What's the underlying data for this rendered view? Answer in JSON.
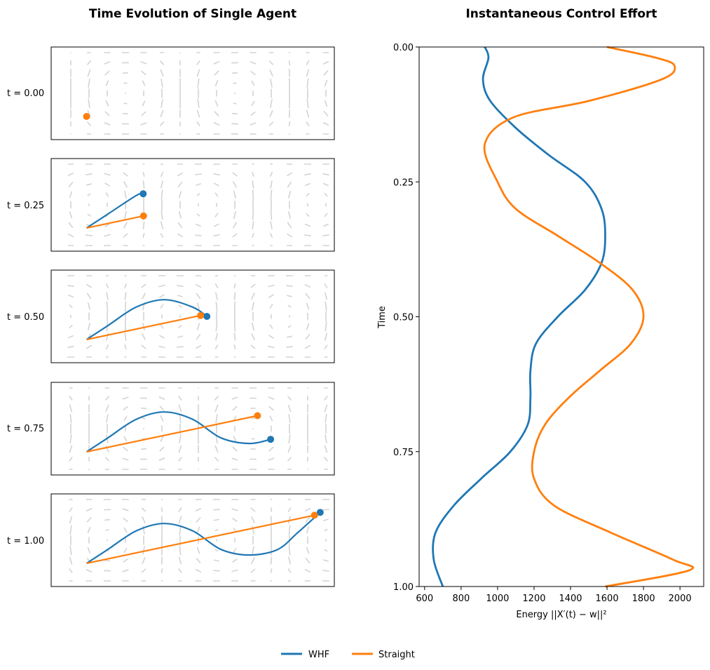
{
  "colors": {
    "whf": "#1f77b4",
    "straight": "#ff7f0e",
    "field": "#d3d3d3"
  },
  "chart_data": [
    {
      "type": "line",
      "title": "Time Evolution of Single Agent",
      "panels": [
        {
          "label": "t = 0.00"
        },
        {
          "label": "t = 0.25"
        },
        {
          "label": "t = 0.50"
        },
        {
          "label": "t = 0.75"
        },
        {
          "label": "t = 1.00"
        }
      ],
      "series": [
        {
          "name": "WHF",
          "x": [
            0.125,
            0.2,
            0.3,
            0.4,
            0.5,
            0.6,
            0.7,
            0.8,
            0.87,
            0.95
          ],
          "y": [
            0.25,
            0.4,
            0.6,
            0.68,
            0.6,
            0.4,
            0.34,
            0.4,
            0.58,
            0.8
          ]
        },
        {
          "name": "Straight",
          "x": [
            0.125,
            0.93
          ],
          "y": [
            0.25,
            0.77
          ]
        }
      ],
      "background": "quiver vector field",
      "grid": false
    },
    {
      "type": "line",
      "title": "Instantaneous Control Effort",
      "xlabel": "Energy ||X′(t) − w||²",
      "ylabel": "Time",
      "xlim": [
        570,
        2130
      ],
      "ylim": [
        0,
        1
      ],
      "y_inverted": true,
      "xticks": [
        600,
        800,
        1000,
        1200,
        1400,
        1600,
        1800,
        2000
      ],
      "yticks": [
        "0.00",
        "0.25",
        "0.50",
        "0.75",
        "1.00"
      ],
      "series": [
        {
          "name": "WHF",
          "time": [
            0.0,
            0.02,
            0.06,
            0.1,
            0.15,
            0.2,
            0.25,
            0.3,
            0.35,
            0.4,
            0.45,
            0.5,
            0.55,
            0.6,
            0.65,
            0.7,
            0.75,
            0.8,
            0.85,
            0.9,
            0.95,
            1.0
          ],
          "energy": [
            930,
            950,
            920,
            960,
            1100,
            1280,
            1480,
            1570,
            1590,
            1570,
            1480,
            1330,
            1210,
            1180,
            1180,
            1165,
            1070,
            910,
            760,
            660,
            650,
            700
          ]
        },
        {
          "name": "Straight",
          "time": [
            0.0,
            0.02,
            0.035,
            0.06,
            0.1,
            0.13,
            0.18,
            0.25,
            0.3,
            0.35,
            0.4,
            0.45,
            0.5,
            0.55,
            0.6,
            0.65,
            0.7,
            0.75,
            0.8,
            0.85,
            0.9,
            0.95,
            0.97,
            1.0
          ],
          "energy": [
            1600,
            1870,
            1970,
            1900,
            1500,
            1090,
            930,
            1000,
            1100,
            1330,
            1560,
            1740,
            1800,
            1730,
            1560,
            1390,
            1260,
            1200,
            1200,
            1310,
            1620,
            1960,
            2050,
            1590
          ]
        }
      ]
    }
  ],
  "legend": {
    "position": "bottom-center",
    "items": [
      "WHF",
      "Straight"
    ]
  }
}
